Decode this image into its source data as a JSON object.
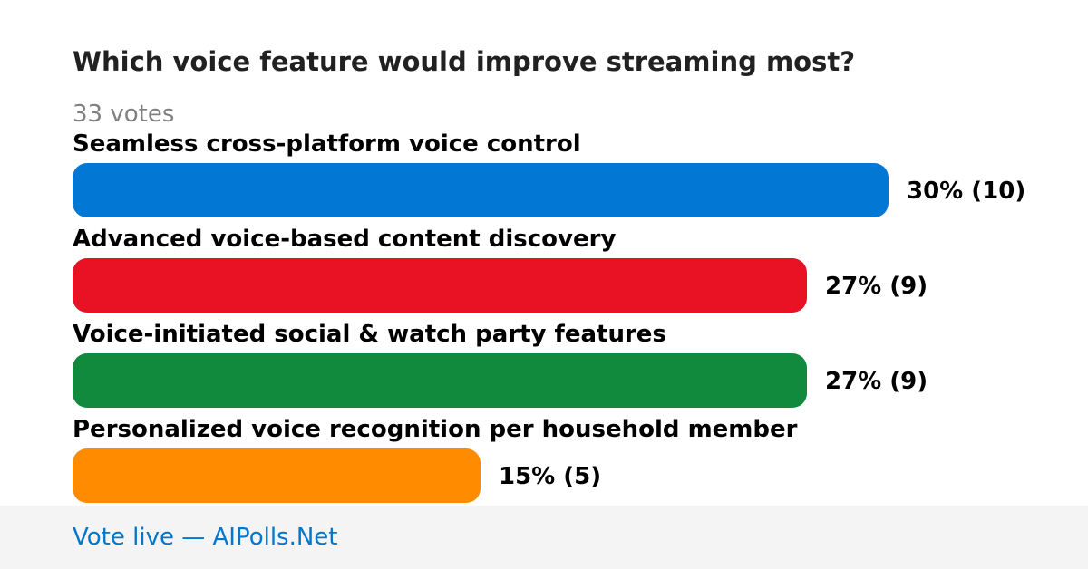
{
  "poll": {
    "title": "Which voice feature would improve streaming most?",
    "votes_label": "33 votes"
  },
  "chart_data": {
    "type": "bar",
    "orientation": "horizontal",
    "title": "Which voice feature would improve streaming most?",
    "total_votes": 33,
    "categories": [
      "Seamless cross-platform voice control",
      "Advanced voice-based content discovery",
      "Voice-initiated social & watch party features",
      "Personalized voice recognition per household member"
    ],
    "percentages": [
      30,
      27,
      27,
      15
    ],
    "votes": [
      10,
      9,
      9,
      5
    ],
    "value_labels": [
      "30% (10)",
      "27% (9)",
      "27% (9)",
      "15% (5)"
    ],
    "colors": [
      "#0377d4",
      "#e81224",
      "#118a3e",
      "#ff8c00"
    ],
    "grid": false,
    "legend": "none"
  },
  "footer": {
    "link_text": "Vote live — AIPolls.Net"
  }
}
